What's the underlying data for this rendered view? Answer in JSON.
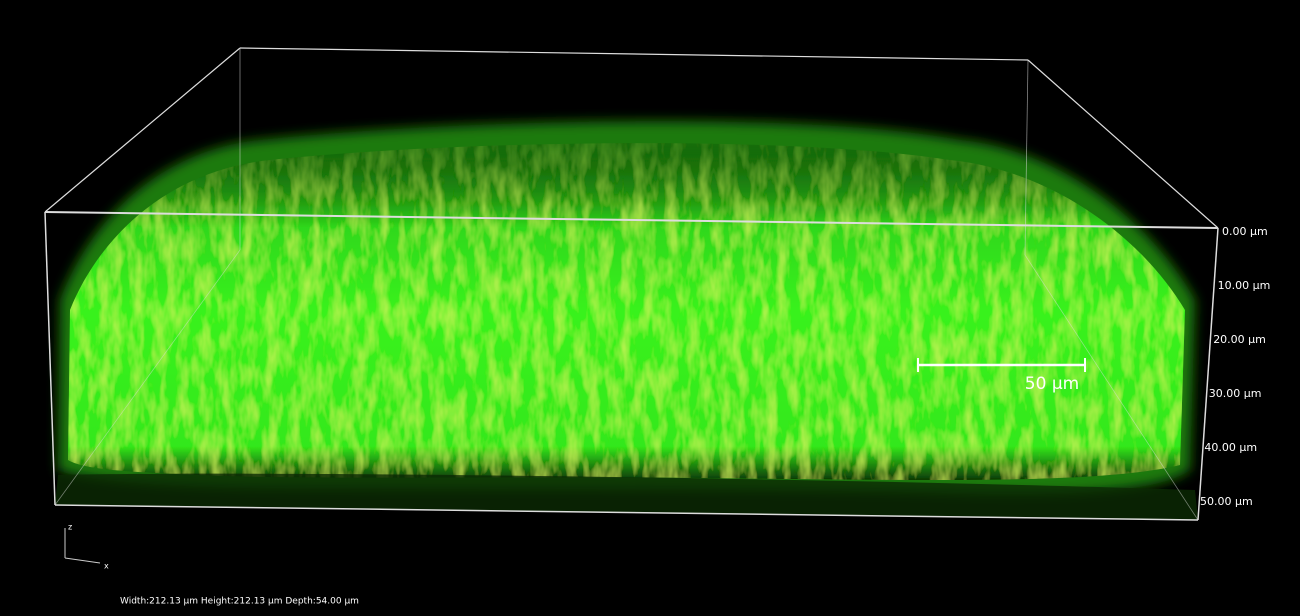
{
  "viewer": {
    "depth_labels": [
      "0.00 µm",
      "10.00 µm",
      "20.00 µm",
      "30.00 µm",
      "40.00 µm",
      "50.00 µm"
    ],
    "scale_bar": "50 µm",
    "axis_labels": {
      "z": "z",
      "x": "x"
    },
    "dimensions": "Width:212.13 µm Height:212.13 µm Depth:54.00 µm"
  }
}
